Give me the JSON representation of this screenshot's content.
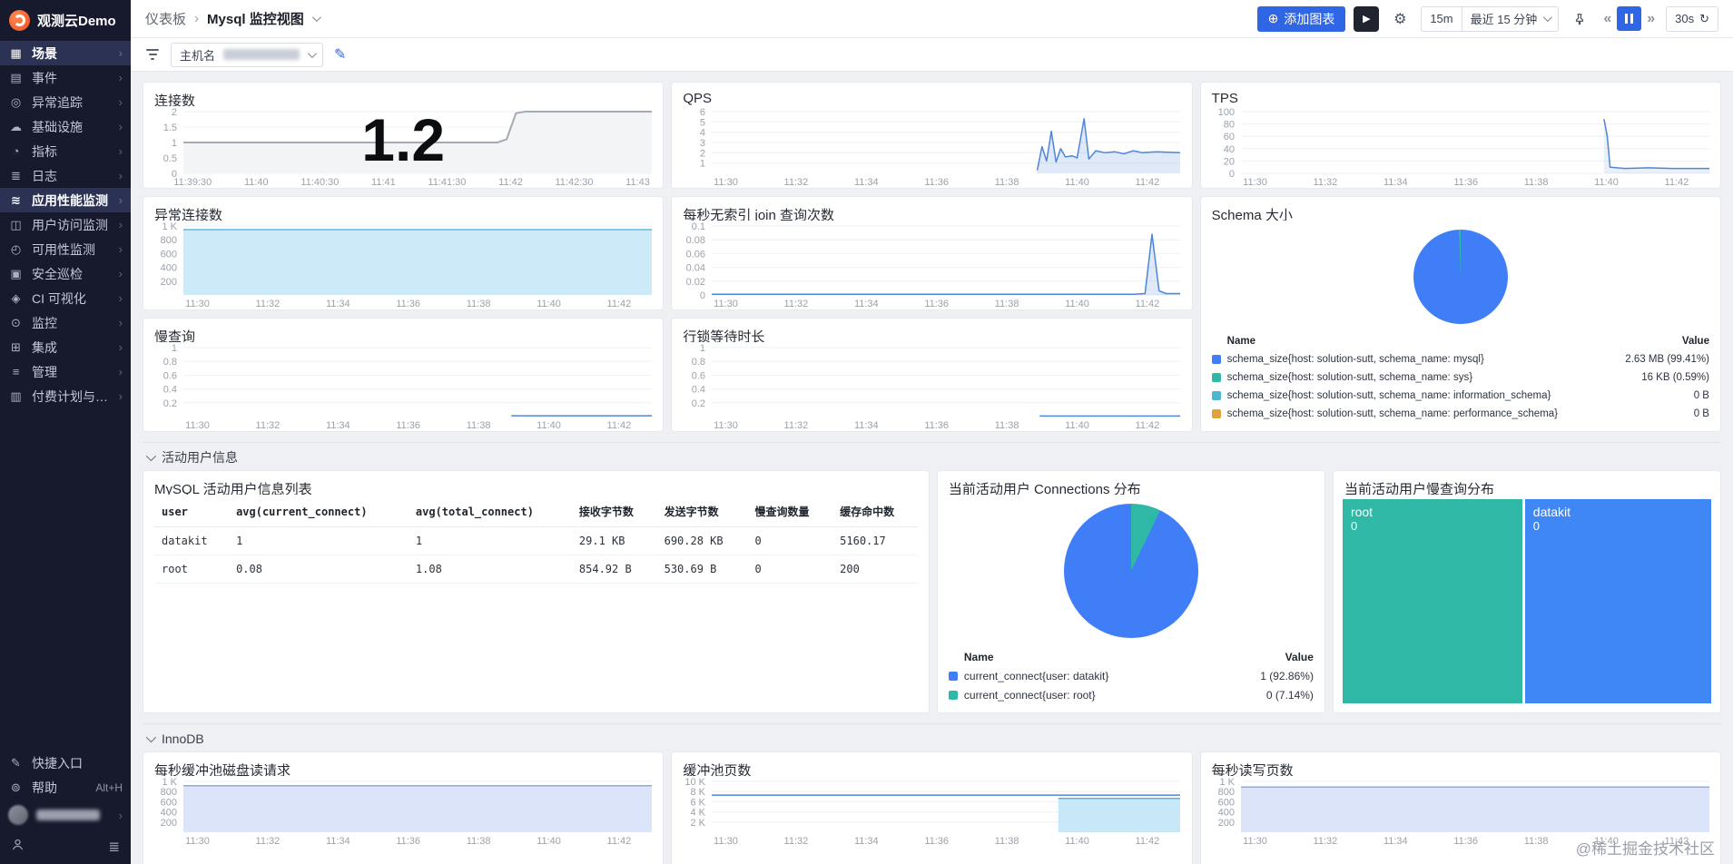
{
  "app": {
    "title": "观测云Demo"
  },
  "sidebar": {
    "items": [
      {
        "key": "scenes",
        "label": "场景",
        "glyph": "▦",
        "active": true
      },
      {
        "key": "events",
        "label": "事件",
        "glyph": "▤",
        "active": false
      },
      {
        "key": "error-tracking",
        "label": "异常追踪",
        "glyph": "◎",
        "active": false
      },
      {
        "key": "infrastructure",
        "label": "基础设施",
        "glyph": "☁",
        "active": false
      },
      {
        "key": "metrics",
        "label": "指标",
        "glyph": "◔",
        "active": false
      },
      {
        "key": "logs",
        "label": "日志",
        "glyph": "≣",
        "active": false
      },
      {
        "key": "apm",
        "label": "应用性能监测",
        "glyph": "≋",
        "active": true
      },
      {
        "key": "rum",
        "label": "用户访问监测",
        "glyph": "◫",
        "active": false
      },
      {
        "key": "availability",
        "label": "可用性监测",
        "glyph": "◴",
        "active": false
      },
      {
        "key": "security",
        "label": "安全巡检",
        "glyph": "▣",
        "active": false
      },
      {
        "key": "ci",
        "label": "CI 可视化",
        "glyph": "◈",
        "active": false
      },
      {
        "key": "monitoring",
        "label": "监控",
        "glyph": "⊙",
        "active": false
      },
      {
        "key": "integrations",
        "label": "集成",
        "glyph": "⊞",
        "active": false
      },
      {
        "key": "management",
        "label": "管理",
        "glyph": "≡",
        "active": false
      },
      {
        "key": "billing",
        "label": "付费计划与账单",
        "glyph": "▥",
        "active": false
      }
    ],
    "quick_entry": "快捷入口",
    "help": "帮助",
    "help_shortcut": "Alt+H"
  },
  "header": {
    "breadcrumb_root": "仪表板",
    "breadcrumb_current": "Mysql 监控视图",
    "add_chart_label": "添加图表",
    "time_preset": "15m",
    "time_range": "最近 15 分钟",
    "refresh_interval": "30s"
  },
  "filter": {
    "field_label": "主机名"
  },
  "sections": {
    "users": "活动用户信息",
    "innodb": "InnoDB"
  },
  "watermark": "@稀土掘金技术社区",
  "tables": {
    "users": {
      "title": "MySQL 活动用户信息列表",
      "columns": [
        "user",
        "avg(current_connect)",
        "avg(total_connect)",
        "接收字节数",
        "发送字节数",
        "慢查询数量",
        "缓存命中数"
      ],
      "rows": [
        [
          "datakit",
          "1",
          "1",
          "29.1 KB",
          "690.28 KB",
          "0",
          "5160.17"
        ],
        [
          "root",
          "0.08",
          "1.08",
          "854.92 B",
          "530.69 B",
          "0",
          "200"
        ]
      ]
    }
  },
  "charts": {
    "connections": {
      "title": "连接数",
      "big_value": "1.2",
      "type": "line",
      "ymin": 0,
      "ymax": 2,
      "yticks": [
        {
          "v": 2,
          "l": "2"
        },
        {
          "v": 1.5,
          "l": "1.5"
        },
        {
          "v": 1,
          "l": "1"
        },
        {
          "v": 0.5,
          "l": "0.5"
        },
        {
          "v": 0,
          "l": "0"
        }
      ],
      "xticks": [
        "11:39:30",
        "11:40",
        "11:40:30",
        "11:41",
        "11:41:30",
        "11:42",
        "11:42:30",
        "11:43"
      ],
      "xspan": [
        0.02,
        0.97
      ],
      "series": [
        {
          "name": "connections",
          "color": "#a6abb3",
          "fill": "#f3f4f6",
          "width": 2,
          "points": [
            [
              0,
              1
            ],
            [
              0.67,
              1
            ],
            [
              0.69,
              1.1
            ],
            [
              0.71,
              1.95
            ],
            [
              0.73,
              2
            ],
            [
              1,
              2
            ]
          ]
        }
      ]
    },
    "qps": {
      "title": "QPS",
      "type": "line",
      "ymin": 0,
      "ymax": 6,
      "yticks": [
        {
          "v": 6,
          "l": "6"
        },
        {
          "v": 5,
          "l": "5"
        },
        {
          "v": 4,
          "l": "4"
        },
        {
          "v": 3,
          "l": "3"
        },
        {
          "v": 2,
          "l": "2"
        },
        {
          "v": 1,
          "l": "1"
        }
      ],
      "xticks": [
        "11:30",
        "11:32",
        "11:34",
        "11:36",
        "11:38",
        "11:40",
        "11:42"
      ],
      "xspan": [
        0.03,
        0.93
      ],
      "series": [
        {
          "name": "qps",
          "color": "#4e86d8",
          "fill": "rgba(78,134,216,0.18)",
          "width": 1.5,
          "points": [
            [
              0.695,
              0.3
            ],
            [
              0.705,
              2.6
            ],
            [
              0.715,
              1.2
            ],
            [
              0.725,
              4.1
            ],
            [
              0.735,
              1.1
            ],
            [
              0.745,
              2.4
            ],
            [
              0.755,
              1.6
            ],
            [
              0.77,
              1.7
            ],
            [
              0.78,
              1.5
            ],
            [
              0.795,
              5.3
            ],
            [
              0.805,
              1.4
            ],
            [
              0.82,
              2.2
            ],
            [
              0.84,
              2.0
            ],
            [
              0.86,
              2.1
            ],
            [
              0.88,
              1.9
            ],
            [
              0.9,
              2.2
            ],
            [
              0.92,
              2.0
            ],
            [
              0.95,
              2.1
            ],
            [
              1,
              2.0
            ]
          ]
        }
      ]
    },
    "tps": {
      "title": "TPS",
      "type": "line",
      "ymin": 0,
      "ymax": 100,
      "yticks": [
        {
          "v": 100,
          "l": "100"
        },
        {
          "v": 80,
          "l": "80"
        },
        {
          "v": 60,
          "l": "60"
        },
        {
          "v": 40,
          "l": "40"
        },
        {
          "v": 20,
          "l": "20"
        },
        {
          "v": 0,
          "l": "0"
        }
      ],
      "xticks": [
        "11:30",
        "11:32",
        "11:34",
        "11:36",
        "11:38",
        "11:40",
        "11:42"
      ],
      "xspan": [
        0.03,
        0.93
      ],
      "series": [
        {
          "name": "tps",
          "color": "#4e86d8",
          "fill": "rgba(78,134,216,0.12)",
          "width": 1.5,
          "points": [
            [
              0.775,
              88
            ],
            [
              0.782,
              60
            ],
            [
              0.788,
              10
            ],
            [
              0.82,
              8
            ],
            [
              0.87,
              9
            ],
            [
              0.92,
              8
            ],
            [
              1,
              8
            ]
          ]
        }
      ]
    },
    "abnormal": {
      "title": "异常连接数",
      "type": "area",
      "ymin": 0,
      "ymax": 1000,
      "yticks": [
        {
          "v": 1000,
          "l": "1 K"
        },
        {
          "v": 800,
          "l": "800"
        },
        {
          "v": 600,
          "l": "600"
        },
        {
          "v": 400,
          "l": "400"
        },
        {
          "v": 200,
          "l": "200"
        }
      ],
      "xticks": [
        "11:30",
        "11:32",
        "11:34",
        "11:36",
        "11:38",
        "11:40",
        "11:42"
      ],
      "xspan": [
        0.03,
        0.93
      ],
      "series": [
        {
          "name": "abnormal_connections",
          "color": "#66b5e3",
          "fill": "#cdeaf8",
          "width": 1.5,
          "points": [
            [
              0,
              948
            ],
            [
              1,
              948
            ]
          ]
        }
      ]
    },
    "no_index_join": {
      "title": "每秒无索引 join 查询次数",
      "type": "line",
      "ymin": 0,
      "ymax": 0.1,
      "yticks": [
        {
          "v": 0.1,
          "l": "0.1"
        },
        {
          "v": 0.08,
          "l": "0.08"
        },
        {
          "v": 0.06,
          "l": "0.06"
        },
        {
          "v": 0.04,
          "l": "0.04"
        },
        {
          "v": 0.02,
          "l": "0.02"
        },
        {
          "v": 0,
          "l": "0"
        }
      ],
      "xticks": [
        "11:30",
        "11:32",
        "11:34",
        "11:36",
        "11:38",
        "11:40",
        "11:42"
      ],
      "xspan": [
        0.03,
        0.93
      ],
      "series": [
        {
          "name": "no_index_join",
          "color": "#4e86d8",
          "fill": "rgba(78,134,216,0.18)",
          "width": 1.5,
          "points": [
            [
              0,
              0.001
            ],
            [
              0.9,
              0.001
            ],
            [
              0.925,
              0.002
            ],
            [
              0.94,
              0.088
            ],
            [
              0.955,
              0.006
            ],
            [
              0.97,
              0.002
            ],
            [
              1,
              0.002
            ]
          ]
        }
      ]
    },
    "schema": {
      "title": "Schema 大小",
      "type": "pie",
      "pie": {
        "slices": [
          {
            "name": "mysql",
            "color": "#3f7ef7",
            "pct": 99.41
          },
          {
            "name": "sys",
            "color": "#2eb8a5",
            "pct": 0.59
          }
        ]
      },
      "legend": {
        "name_header": "Name",
        "value_header": "Value",
        "rows": [
          {
            "color": "#3f7ef7",
            "name": "schema_size{host: solution-sutt, schema_name: mysql}",
            "value": "2.63 MB (99.41%)"
          },
          {
            "color": "#2eb8a5",
            "name": "schema_size{host: solution-sutt, schema_name: sys}",
            "value": "16 KB (0.59%)"
          },
          {
            "color": "#4bb7d3",
            "name": "schema_size{host: solution-sutt, schema_name: information_schema}",
            "value": "0 B"
          },
          {
            "color": "#e0a23e",
            "name": "schema_size{host: solution-sutt, schema_name: performance_schema}",
            "value": "0 B"
          }
        ]
      }
    },
    "slow_query": {
      "title": "慢查询",
      "type": "line",
      "ymin": 0,
      "ymax": 1,
      "yticks": [
        {
          "v": 1,
          "l": "1"
        },
        {
          "v": 0.8,
          "l": "0.8"
        },
        {
          "v": 0.6,
          "l": "0.6"
        },
        {
          "v": 0.4,
          "l": "0.4"
        },
        {
          "v": 0.2,
          "l": "0.2"
        }
      ],
      "xticks": [
        "11:30",
        "11:32",
        "11:34",
        "11:36",
        "11:38",
        "11:40",
        "11:42"
      ],
      "xspan": [
        0.03,
        0.93
      ],
      "series": [
        {
          "name": "slow_query",
          "color": "#4e86d8",
          "width": 1.5,
          "points": [
            [
              0.7,
              0.012
            ],
            [
              1,
              0.012
            ]
          ]
        }
      ]
    },
    "row_lock": {
      "title": "行锁等待时长",
      "type": "line",
      "ymin": 0,
      "ymax": 1,
      "yticks": [
        {
          "v": 1,
          "l": "1"
        },
        {
          "v": 0.8,
          "l": "0.8"
        },
        {
          "v": 0.6,
          "l": "0.6"
        },
        {
          "v": 0.4,
          "l": "0.4"
        },
        {
          "v": 0.2,
          "l": "0.2"
        }
      ],
      "xticks": [
        "11:30",
        "11:32",
        "11:34",
        "11:36",
        "11:38",
        "11:40",
        "11:42"
      ],
      "xspan": [
        0.03,
        0.93
      ],
      "series": [
        {
          "name": "row_lock_wait",
          "color": "#4e86d8",
          "width": 1.5,
          "points": [
            [
              0.7,
              0.008
            ],
            [
              1,
              0.008
            ]
          ]
        }
      ]
    },
    "conn_dist": {
      "title": "当前活动用户 Connections 分布",
      "type": "pie",
      "pie": {
        "slices": [
          {
            "name": "root",
            "color": "#2eb8a5",
            "pct": 7.14
          },
          {
            "name": "datakit",
            "color": "#3f7ef7",
            "pct": 92.86
          }
        ]
      },
      "legend": {
        "name_header": "Name",
        "value_header": "Value",
        "rows": [
          {
            "color": "#3f7ef7",
            "name": "current_connect{user: datakit}",
            "value": "1 (92.86%)"
          },
          {
            "color": "#2eb8a5",
            "name": "current_connect{user: root}",
            "value": "0 (7.14%)"
          }
        ]
      }
    },
    "slow_dist": {
      "title": "当前活动用户慢查询分布",
      "type": "treemap",
      "blocks": [
        {
          "label": "root",
          "value": "0",
          "color": "#2eb8a5",
          "flex": 49
        },
        {
          "label": "datakit",
          "value": "0",
          "color": "#3f87f5",
          "flex": 51
        }
      ]
    },
    "disk_read": {
      "title": "每秒缓冲池磁盘读请求",
      "type": "area",
      "ymin": 0,
      "ymax": 1000,
      "yticks": [
        {
          "v": 1000,
          "l": "1 K"
        },
        {
          "v": 800,
          "l": "800"
        },
        {
          "v": 600,
          "l": "600"
        },
        {
          "v": 400,
          "l": "400"
        },
        {
          "v": 200,
          "l": "200"
        }
      ],
      "xticks": [
        "11:30",
        "11:32",
        "11:34",
        "11:36",
        "11:38",
        "11:40",
        "11:42"
      ],
      "xspan": [
        0.03,
        0.93
      ],
      "series": [
        {
          "name": "buffer_pool_disk_reads",
          "color": "#8fa9e8",
          "fill": "#dbe4f8",
          "width": 1.5,
          "points": [
            [
              0,
              915
            ],
            [
              1,
              915
            ]
          ]
        }
      ]
    },
    "pool_pages": {
      "title": "缓冲池页数",
      "type": "line",
      "ymin": 0,
      "ymax": 10000,
      "yticks": [
        {
          "v": 10000,
          "l": "10 K"
        },
        {
          "v": 8000,
          "l": "8 K"
        },
        {
          "v": 6000,
          "l": "6 K"
        },
        {
          "v": 4000,
          "l": "4 K"
        },
        {
          "v": 2000,
          "l": "2 K"
        }
      ],
      "xticks": [
        "11:30",
        "11:32",
        "11:34",
        "11:36",
        "11:38",
        "11:40",
        "11:42"
      ],
      "xspan": [
        0.03,
        0.93
      ],
      "series": [
        {
          "name": "total_pages",
          "color": "#4e86d8",
          "width": 1.5,
          "points": [
            [
              0,
              7300
            ],
            [
              1,
              7300
            ]
          ]
        },
        {
          "name": "free_pages",
          "color": "#5fb0de",
          "fill": "#c8e7f7",
          "width": 1.5,
          "points": [
            [
              0.74,
              6650
            ],
            [
              1,
              6650
            ]
          ]
        }
      ]
    },
    "rw_pages": {
      "title": "每秒读写页数",
      "type": "area",
      "ymin": 0,
      "ymax": 1000,
      "yticks": [
        {
          "v": 1000,
          "l": "1 K"
        },
        {
          "v": 800,
          "l": "800"
        },
        {
          "v": 600,
          "l": "600"
        },
        {
          "v": 400,
          "l": "400"
        },
        {
          "v": 200,
          "l": "200"
        }
      ],
      "xticks": [
        "11:30",
        "11:32",
        "11:34",
        "11:36",
        "11:38",
        "11:40",
        "11:42"
      ],
      "xspan": [
        0.03,
        0.93
      ],
      "series": [
        {
          "name": "read_write_pages",
          "color": "#8fa9e8",
          "fill": "#dbe4f8",
          "width": 1.5,
          "points": [
            [
              0,
              890
            ],
            [
              1,
              890
            ]
          ]
        }
      ]
    }
  }
}
